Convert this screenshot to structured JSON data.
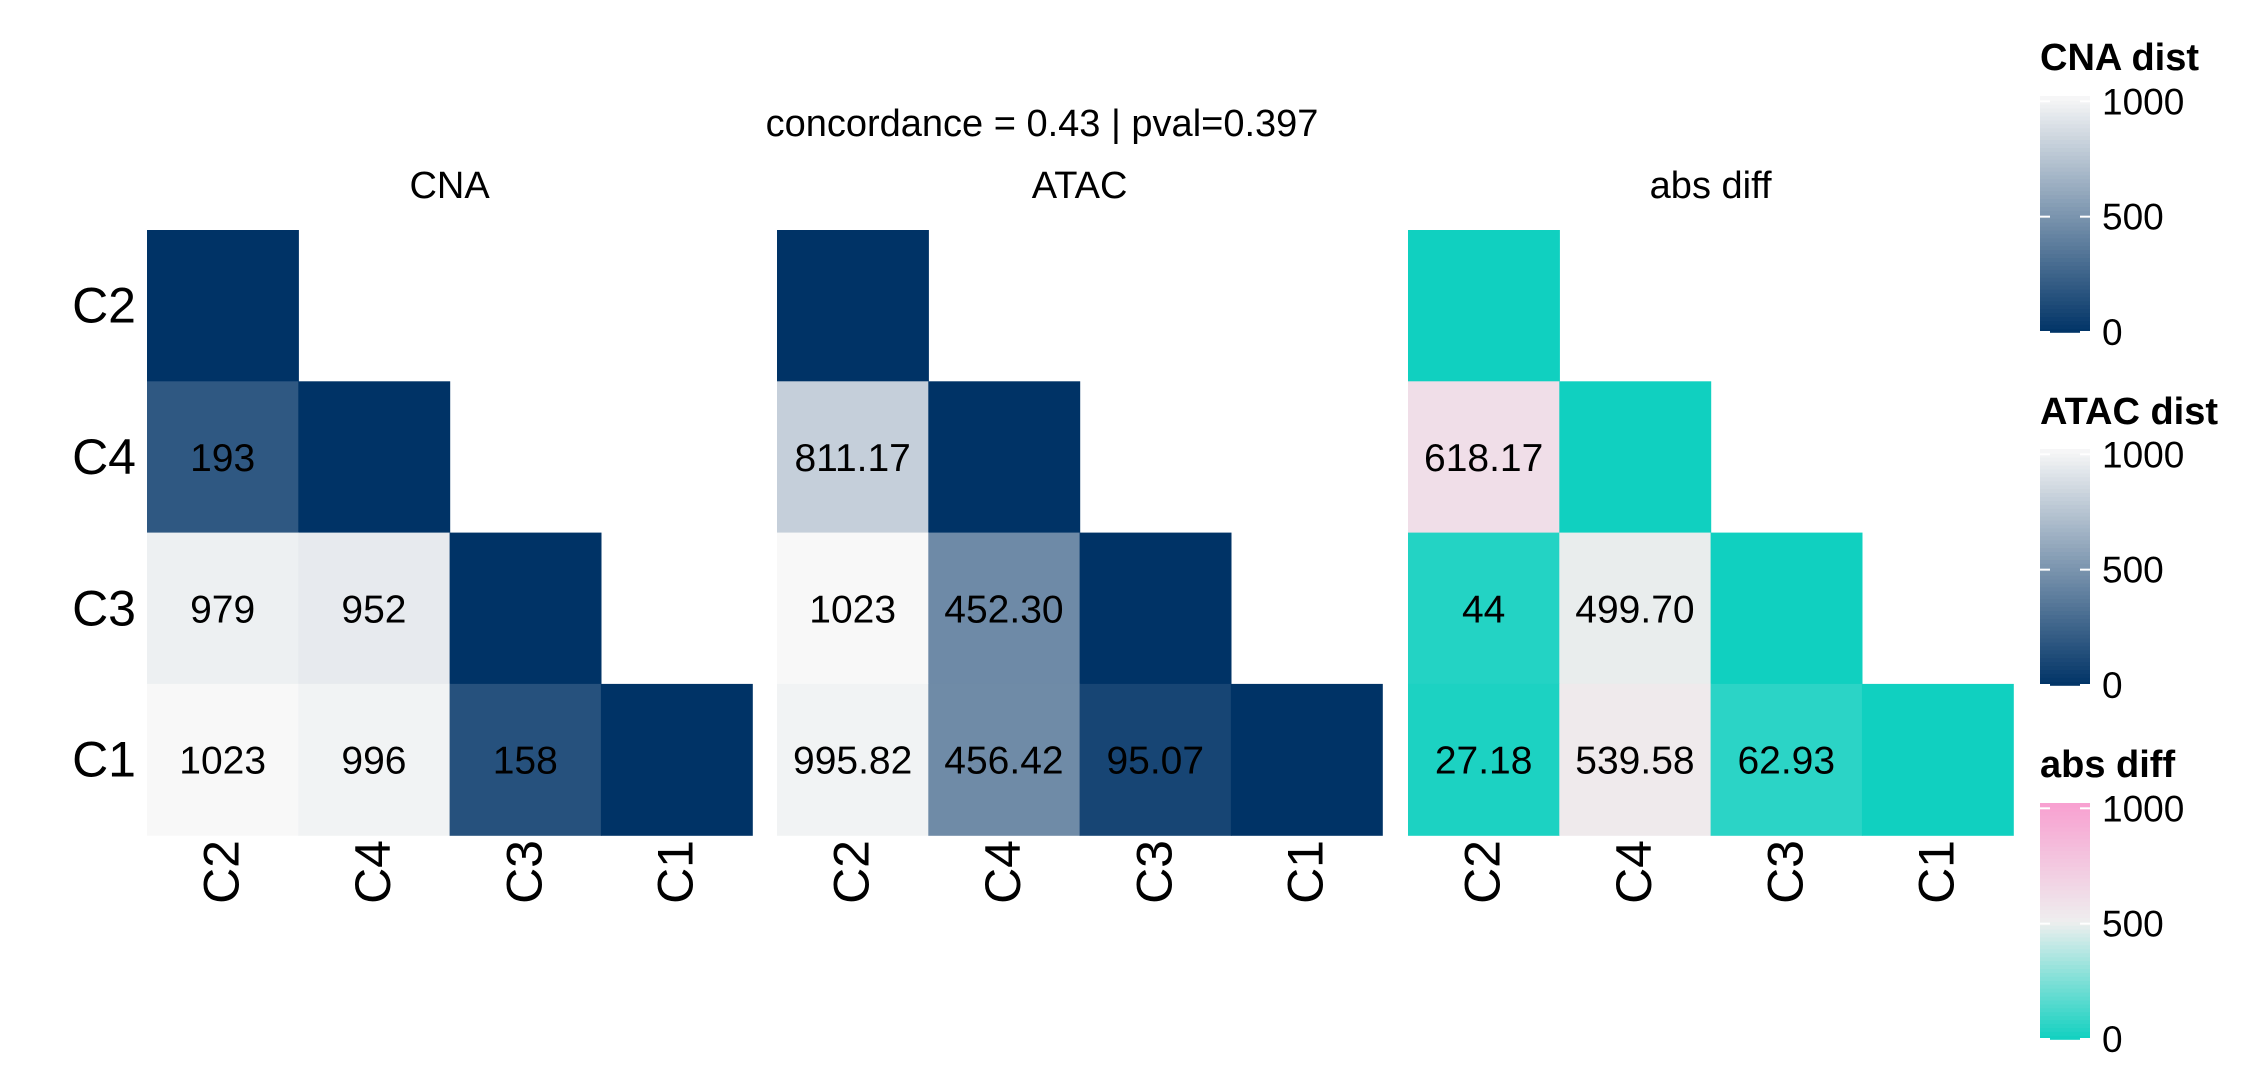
{
  "chart_data": {
    "type": "heatmap",
    "title": "concordance = 0.43 | pval=0.397",
    "row_labels": [
      "C2",
      "C4",
      "C3",
      "C1"
    ],
    "col_labels": [
      "C2",
      "C4",
      "C3",
      "C1"
    ],
    "panels": [
      {
        "name": "CNA",
        "scale": "cna",
        "cells": [
          [
            0,
            null,
            null,
            null
          ],
          [
            193,
            0,
            null,
            null
          ],
          [
            979,
            952,
            0,
            null
          ],
          [
            1023,
            996,
            158,
            0
          ]
        ],
        "labels": [
          [
            "",
            "",
            "",
            ""
          ],
          [
            "193",
            "",
            "",
            ""
          ],
          [
            "979",
            "952",
            "",
            ""
          ],
          [
            "1023",
            "996",
            "158",
            ""
          ]
        ]
      },
      {
        "name": "ATAC",
        "scale": "atac",
        "cells": [
          [
            0,
            null,
            null,
            null
          ],
          [
            811.17,
            0,
            null,
            null
          ],
          [
            1023,
            452.3,
            0,
            null
          ],
          [
            995.82,
            456.42,
            95.07,
            0
          ]
        ],
        "labels": [
          [
            "",
            "",
            "",
            ""
          ],
          [
            "811.17",
            "",
            "",
            ""
          ],
          [
            "1023",
            "452.30",
            "",
            ""
          ],
          [
            "995.82",
            "456.42",
            "95.07",
            ""
          ]
        ]
      },
      {
        "name": "abs diff",
        "scale": "diff",
        "cells": [
          [
            0,
            null,
            null,
            null
          ],
          [
            618.17,
            0,
            null,
            null
          ],
          [
            44,
            499.7,
            0,
            null
          ],
          [
            27.18,
            539.58,
            62.93,
            0
          ]
        ],
        "labels": [
          [
            "",
            "",
            "",
            ""
          ],
          [
            "618.17",
            "",
            "",
            ""
          ],
          [
            "44",
            "499.70",
            "",
            ""
          ],
          [
            "27.18",
            "539.58",
            "62.93",
            ""
          ]
        ]
      }
    ],
    "legends": [
      {
        "title": "CNA dist",
        "scale": "cna",
        "range": [
          0,
          1023
        ],
        "ticks": [
          0,
          500,
          1000
        ]
      },
      {
        "title": "ATAC dist",
        "scale": "atac",
        "range": [
          0,
          1023
        ],
        "ticks": [
          0,
          500,
          1000
        ]
      },
      {
        "title": "abs diff",
        "scale": "diff",
        "range": [
          0,
          1023
        ],
        "ticks": [
          0,
          500,
          1000
        ]
      }
    ],
    "colors": {
      "cna": [
        "#003366",
        "#f8f8f8"
      ],
      "atac": [
        "#003366",
        "#f8f8f8"
      ],
      "diff": [
        "#10d0c0",
        "#eeeeee",
        "#f8a0d0"
      ]
    }
  }
}
